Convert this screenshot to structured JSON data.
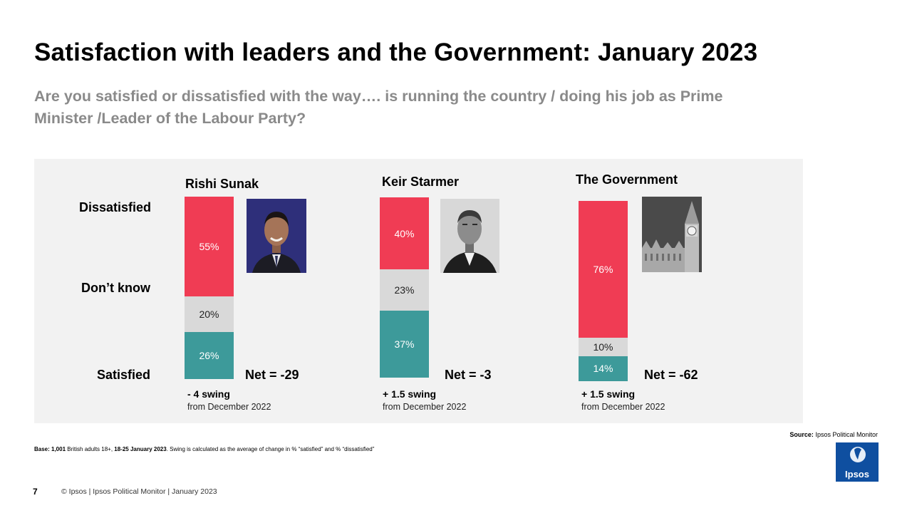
{
  "slide": {
    "title": "Satisfaction with leaders and the Government: January 2023",
    "question": "Are you satisfied or dissatisfied with the way…. is running the country / doing his job as Prime Minister /Leader of the Labour Party?",
    "row_labels": {
      "dissatisfied": "Dissatisfied",
      "dont_know": "Don’t know",
      "satisfied": "Satisfied"
    },
    "source_label": "Source:",
    "source": "Ipsos Political Monitor",
    "base_label": "Base: 1,001",
    "base_text1": " British adults 18+, ",
    "base_dates": "18-25 January 2023",
    "base_text2": ". Swing is calculated as the average of change in % “satisfied” and % “dissatisfied”",
    "page_number": "7",
    "footer": "© Ipsos | Ipsos Political Monitor | January 2023",
    "logo_text": "Ipsos",
    "colors": {
      "dissatisfied": "#f03c54",
      "dont_know": "#d9d9d9",
      "satisfied": "#3d9a9a",
      "panel": "#f2f2f2"
    }
  },
  "chart_data": {
    "type": "bar",
    "stacked": true,
    "categories": [
      "Rishi Sunak",
      "Keir Starmer",
      "The Government"
    ],
    "series": [
      {
        "name": "Dissatisfied",
        "values": [
          55,
          40,
          76
        ],
        "labels": [
          "55%",
          "40%",
          "76%"
        ]
      },
      {
        "name": "Don’t know",
        "values": [
          20,
          23,
          10
        ],
        "labels": [
          "20%",
          "23%",
          "10%"
        ]
      },
      {
        "name": "Satisfied",
        "values": [
          26,
          37,
          14
        ],
        "labels": [
          "26%",
          "37%",
          "14%"
        ]
      }
    ],
    "net": [
      "Net = -29",
      "Net = -3",
      "Net = -62"
    ],
    "swing": [
      "- 4 swing",
      "+ 1.5 swing",
      "+ 1.5 swing"
    ],
    "swing_from": [
      "from December 2022",
      "from December 2022",
      "from December 2022"
    ]
  },
  "images": [
    {
      "name": "rishi-sunak-photo"
    },
    {
      "name": "keir-starmer-photo"
    },
    {
      "name": "big-ben-photo"
    }
  ]
}
